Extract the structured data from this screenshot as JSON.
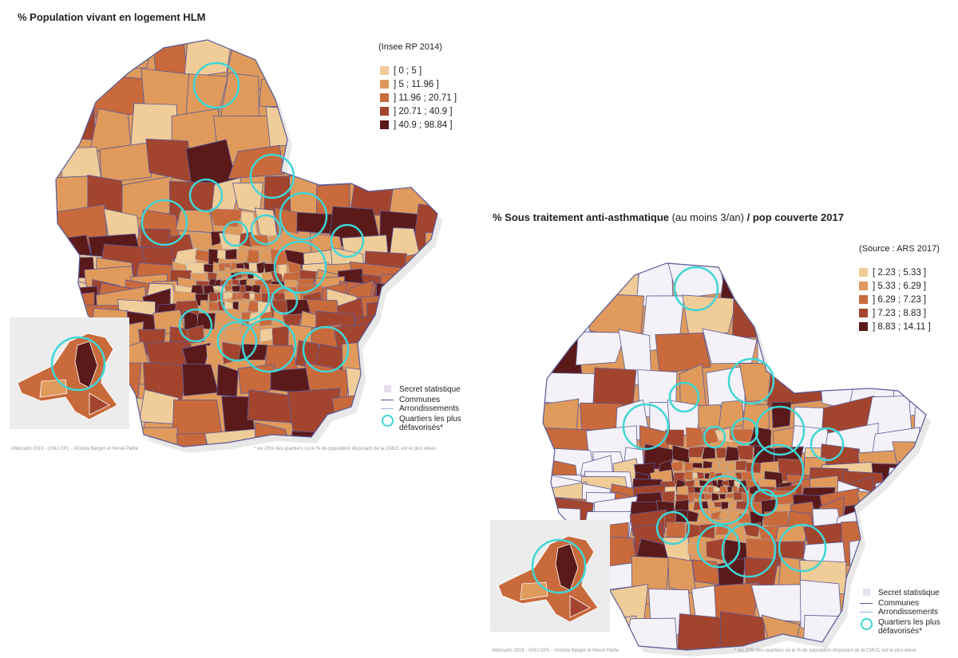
{
  "map1": {
    "title": "% Population vivant en logement HLM",
    "source": "(Insee RP 2014)",
    "classes": [
      {
        "label": "[ 0 ; 5 ]",
        "color": "#f0cc98"
      },
      {
        "label": "] 5 ; 11.96 ]",
        "color": "#df9a5c"
      },
      {
        "label": "] 11.96 ; 20.71 ]",
        "color": "#c96a3c"
      },
      {
        "label": "] 20.71 ; 40.9 ]",
        "color": "#a3452e"
      },
      {
        "label": "] 40.9 ; 98.84 ]",
        "color": "#5a1a1a"
      }
    ],
    "legend_extra": {
      "secret": "Secret statistique",
      "communes": "Communes",
      "arrondissements": "Arrondissements",
      "quartiers": "Quartiers les plus défavorisés*"
    },
    "credit": "Altercarto 2019 - GNU GPL - Victoria Berger et Hervé Piette",
    "footnote": "* les 20% des quartiers où le % de population disposant de la CMUC est le plus élevé."
  },
  "map2": {
    "title_bold": "% Sous traitement anti-asthmatique",
    "title_light": " (au moins 3/an)",
    "title_bold2": " / pop couverte 2017",
    "source": "(Source : ARS 2017)",
    "classes": [
      {
        "label": "[ 2.23 ; 5.33 ]",
        "color": "#f0cc98"
      },
      {
        "label": "] 5.33 ; 6.29 ]",
        "color": "#df9a5c"
      },
      {
        "label": "] 6.29 ; 7.23 ]",
        "color": "#c96a3c"
      },
      {
        "label": "] 7.23 ; 8.83 ]",
        "color": "#a3452e"
      },
      {
        "label": "] 8.83 ; 14.11 ]",
        "color": "#5a1a1a"
      }
    ],
    "legend_extra": {
      "secret": "Secret statistique",
      "communes": "Communes",
      "arrondissements": "Arrondissements",
      "quartiers": "Quartiers les plus défavorisés*"
    },
    "credit": "Altercarto 2019 - GNU GPL - Victoria Berger et Hervé Piette",
    "footnote": "* les 20% des quartiers où le % de population disposant de la CMUC est le plus élevé."
  },
  "colors": {
    "circle": "#3fd6d6",
    "communes_line": "#5a5a9a",
    "arrondissements_line": "#8fb5e0",
    "secret": "#e6dff0",
    "blank": "#f4f2f8"
  }
}
